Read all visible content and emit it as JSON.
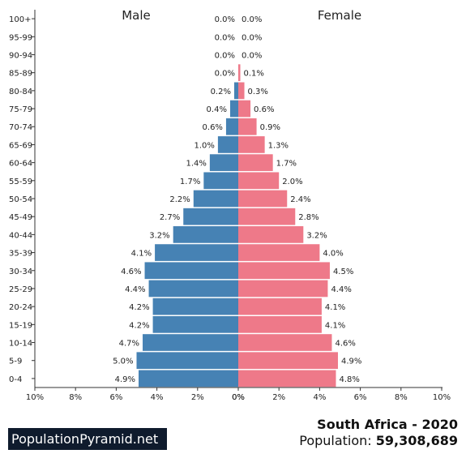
{
  "chart_data": {
    "type": "bar",
    "orientation": "horizontal-butterfly",
    "categories": [
      "100+",
      "95-99",
      "90-94",
      "85-89",
      "80-84",
      "75-79",
      "70-74",
      "65-69",
      "60-64",
      "55-59",
      "50-54",
      "45-49",
      "40-44",
      "35-39",
      "30-34",
      "25-29",
      "20-24",
      "15-19",
      "10-14",
      "5-9",
      "0-4"
    ],
    "series": [
      {
        "name": "Male",
        "color": "#4682b4",
        "values": [
          0.0,
          0.0,
          0.0,
          0.0,
          0.2,
          0.4,
          0.6,
          1.0,
          1.4,
          1.7,
          2.2,
          2.7,
          3.2,
          4.1,
          4.6,
          4.4,
          4.2,
          4.2,
          4.7,
          5.0,
          4.9
        ],
        "labels": [
          "0.0%",
          "0.0%",
          "0.0%",
          "0.0%",
          "0.2%",
          "0.4%",
          "0.6%",
          "1.0%",
          "1.4%",
          "1.7%",
          "2.2%",
          "2.7%",
          "3.2%",
          "4.1%",
          "4.6%",
          "4.4%",
          "4.2%",
          "4.2%",
          "4.7%",
          "5.0%",
          "4.9%"
        ]
      },
      {
        "name": "Female",
        "color": "#ee7989",
        "values": [
          0.0,
          0.0,
          0.0,
          0.1,
          0.3,
          0.6,
          0.9,
          1.3,
          1.7,
          2.0,
          2.4,
          2.8,
          3.2,
          4.0,
          4.5,
          4.4,
          4.1,
          4.1,
          4.6,
          4.9,
          4.8
        ],
        "labels": [
          "0.0%",
          "0.0%",
          "0.0%",
          "0.1%",
          "0.3%",
          "0.6%",
          "0.9%",
          "1.3%",
          "1.7%",
          "2.0%",
          "2.4%",
          "2.8%",
          "3.2%",
          "4.0%",
          "4.5%",
          "4.4%",
          "4.1%",
          "4.1%",
          "4.6%",
          "4.9%",
          "4.8%"
        ]
      }
    ],
    "xlim": [
      0,
      10
    ],
    "xticks": [
      10,
      8,
      6,
      4,
      2,
      0
    ],
    "xtick_labels_left": [
      "10%",
      "8%",
      "6%",
      "4%",
      "2%",
      "0%"
    ],
    "xtick_labels_right": [
      "0%",
      "2%",
      "4%",
      "6%",
      "8%",
      "10%"
    ],
    "grid": false
  },
  "footer": {
    "brand": "PopulationPyramid.net",
    "country": "South Africa - 2020",
    "population_label": "Population: ",
    "population_value": "59,308,689"
  }
}
